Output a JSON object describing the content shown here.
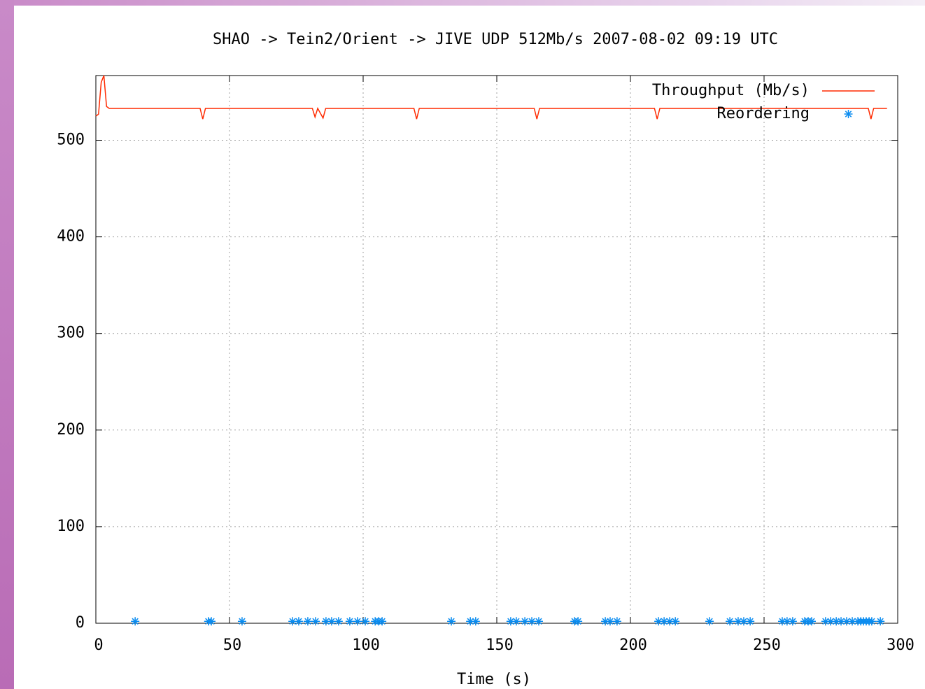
{
  "chart_data": {
    "type": "line",
    "title": "SHAO -> Tein2/Orient -> JIVE UDP 512Mb/s 2007-08-02 09:19 UTC",
    "x_label": "Time (s)",
    "xlim": [
      0,
      300
    ],
    "xticks": [
      0,
      50,
      100,
      150,
      200,
      250,
      300
    ],
    "ylim": [
      0,
      567
    ],
    "yticks": [
      0,
      100,
      200,
      300,
      400,
      500
    ],
    "grid": true,
    "legend": "top right",
    "series": [
      {
        "name": "Throughput (Mb/s)",
        "color": "#ff2a00",
        "type": "line",
        "x": [
          0,
          1,
          2,
          3,
          4,
          5,
          39,
          40,
          41,
          81,
          82,
          83,
          84,
          85,
          86,
          119,
          120,
          121,
          164,
          165,
          166,
          209,
          210,
          211,
          289,
          290,
          291,
          296
        ],
        "values": [
          525,
          527,
          560,
          567,
          535,
          533,
          533,
          522,
          533,
          533,
          524,
          533,
          528,
          523,
          533,
          533,
          522,
          533,
          533,
          522,
          533,
          533,
          522,
          533,
          533,
          522,
          533,
          533
        ]
      },
      {
        "name": "Reordering",
        "color": "#0a8cf0",
        "type": "scatter",
        "x": [
          14.7,
          42.1,
          43.2,
          54.7,
          73.6,
          75.9,
          79.3,
          82.2,
          86.1,
          88.2,
          90.8,
          95.0,
          97.9,
          100.8,
          104.5,
          105.8,
          107.1,
          133.0,
          140.1,
          142.1,
          155.2,
          157.3,
          160.5,
          163.1,
          165.7,
          179.1,
          180.4,
          190.6,
          192.4,
          195.0,
          210.5,
          212.6,
          214.7,
          216.8,
          229.6,
          237.2,
          240.3,
          242.4,
          244.8,
          256.8,
          258.6,
          260.7,
          265.2,
          266.5,
          267.8,
          273.0,
          274.9,
          277.0,
          278.8,
          280.9,
          283.0,
          285.1,
          286.2,
          287.2,
          288.2,
          289.3,
          290.3,
          293.5
        ],
        "values": [
          2,
          2,
          2,
          2,
          2,
          2,
          2,
          2,
          2,
          2,
          2,
          2,
          2,
          2,
          2,
          2,
          2,
          2,
          2,
          2,
          2,
          2,
          2,
          2,
          2,
          2,
          2,
          2,
          2,
          2,
          2,
          2,
          2,
          2,
          2,
          2,
          2,
          2,
          2,
          2,
          2,
          2,
          2,
          2,
          2,
          2,
          2,
          2,
          2,
          2,
          2,
          2,
          2,
          2,
          2,
          2,
          2,
          2
        ]
      }
    ]
  }
}
